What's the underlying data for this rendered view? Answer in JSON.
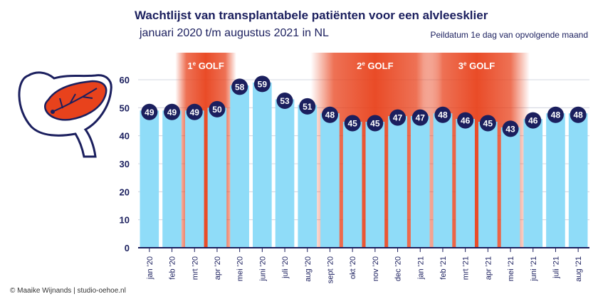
{
  "header": {
    "title": "Wachtlijst van transplantabele patiënten voor een alvleesklier",
    "subtitle": "januari 2020 t/m augustus 2021 in NL",
    "note": "Peildatum 1e dag van opvolgende maand"
  },
  "footer": {
    "credit": "© Maaike Wijnands | studio-oehoe.nl"
  },
  "icons": {
    "logo": "pancreas-icon"
  },
  "colors": {
    "bar": "#8fdcf8",
    "label_circle": "#1b1f5e",
    "wave_core": "#e8421c",
    "axis": "#1b1f5e"
  },
  "chart_data": {
    "type": "bar",
    "categories": [
      "jan '20",
      "feb '20",
      "mrt '20",
      "apr '20",
      "mei '20",
      "juni '20",
      "juli '20",
      "aug '20",
      "sept '20",
      "okt '20",
      "nov '20",
      "dec '20",
      "jan '21",
      "feb '21",
      "mrt '21",
      "apr '21",
      "mei '21",
      "juni '21",
      "juli '21",
      "aug '21"
    ],
    "values": [
      49,
      49,
      49,
      50,
      58,
      59,
      53,
      51,
      48,
      45,
      45,
      47,
      47,
      48,
      46,
      45,
      43,
      46,
      48,
      48
    ],
    "ylim": [
      0,
      60
    ],
    "yticks": [
      0,
      10,
      20,
      30,
      40,
      50,
      60
    ],
    "grid": true,
    "waves": [
      {
        "label": "1e GOLF",
        "start": "mrt '20",
        "end": "apr '20"
      },
      {
        "label": "2e GOLF",
        "start": "sept '20",
        "end": "jan '21"
      },
      {
        "label": "3e GOLF",
        "start": "feb '21",
        "end": "mei '21"
      }
    ]
  }
}
